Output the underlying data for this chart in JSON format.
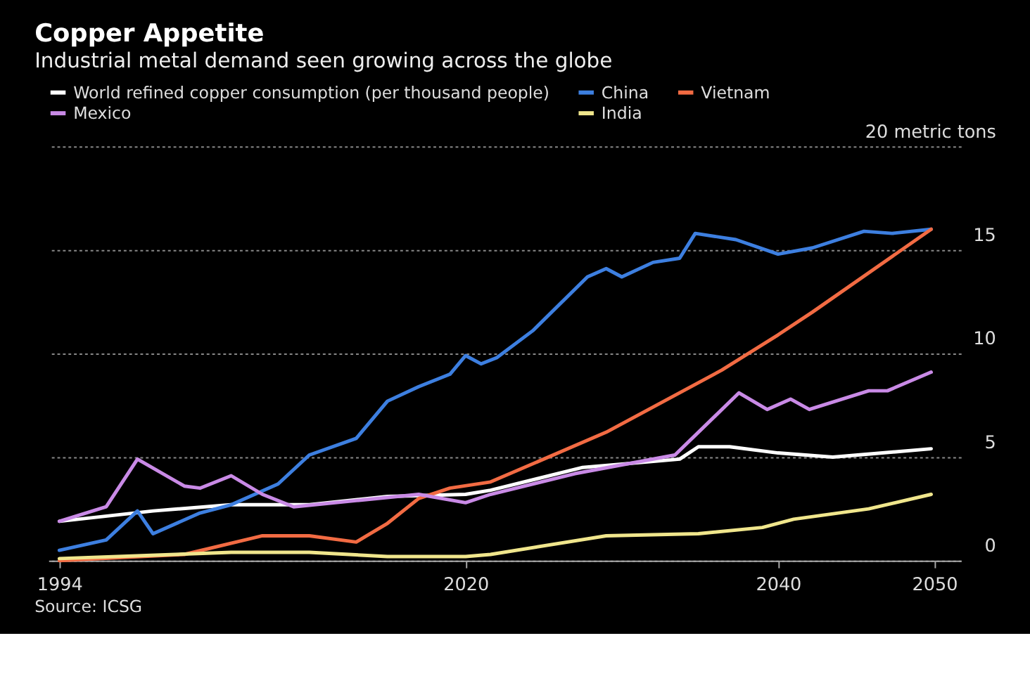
{
  "chart_data": {
    "type": "line",
    "title": "Copper Appetite",
    "subtitle": "Industrial metal demand seen growing across the globe",
    "xlim": [
      1993.3,
      2051.7
    ],
    "xticks": [
      1994,
      2020,
      2040,
      2050
    ],
    "ylim": [
      0,
      20
    ],
    "yticks": [
      0,
      5,
      10,
      15,
      {
        "value": 20,
        "label": "20 metric tons"
      }
    ],
    "grid": "y",
    "legend": "top",
    "annotations": [
      "Source: ICSG"
    ],
    "series": [
      {
        "name": "World refined copper consumption (per thousand people)",
        "color": "#ffffff",
        "x": [
          1994,
          2000,
          2005,
          2010,
          2015,
          2020,
          2021.6,
          2027.5,
          2033.7,
          2034.9,
          2036.9,
          2040,
          2043.5,
          2049.8
        ],
        "values": [
          1.9,
          2.4,
          2.7,
          2.7,
          3.1,
          3.2,
          3.4,
          4.5,
          4.9,
          5.5,
          5.5,
          5.2,
          5.0,
          5.4
        ]
      },
      {
        "name": "China",
        "color": "#3d7fe0",
        "x": [
          1994,
          1997,
          1999,
          2000,
          2003,
          2005,
          2008,
          2010,
          2013,
          2015,
          2017,
          2019,
          2020,
          2021,
          2022,
          2024.3,
          2027.8,
          2029,
          2030,
          2032,
          2033.7,
          2034.7,
          2037.3,
          2040,
          2042.2,
          2045.5,
          2047.3,
          2049.8
        ],
        "values": [
          0.5,
          1.0,
          2.4,
          1.3,
          2.3,
          2.7,
          3.7,
          5.1,
          5.9,
          7.7,
          8.4,
          9.0,
          9.9,
          9.5,
          9.8,
          11.1,
          13.7,
          14.1,
          13.7,
          14.4,
          14.6,
          15.8,
          15.5,
          14.8,
          15.1,
          15.9,
          15.8,
          16.0
        ]
      },
      {
        "name": "Vietnam",
        "color": "#f26b43",
        "x": [
          1994,
          2002,
          2007,
          2010,
          2013,
          2015,
          2017,
          2019,
          2021.6,
          2029,
          2036.4,
          2040,
          2042.2,
          2049.8
        ],
        "values": [
          0,
          0.3,
          1.2,
          1.2,
          0.9,
          1.8,
          3.0,
          3.5,
          3.8,
          6.2,
          9.2,
          10.9,
          12.0,
          16.0
        ]
      },
      {
        "name": "Mexico",
        "color": "#c98ae6",
        "x": [
          1994,
          1997,
          1999,
          2002,
          2003,
          2005,
          2007,
          2009,
          2013,
          2017,
          2020,
          2021.6,
          2027,
          2033.4,
          2037.5,
          2039.3,
          2040.8,
          2042,
          2045.8,
          2047,
          2049.8
        ],
        "values": [
          1.9,
          2.6,
          4.9,
          3.6,
          3.5,
          4.1,
          3.2,
          2.6,
          2.9,
          3.2,
          2.8,
          3.2,
          4.2,
          5.1,
          8.1,
          7.3,
          7.8,
          7.3,
          8.2,
          8.2,
          9.1
        ]
      },
      {
        "name": "India",
        "color": "#f0e68c",
        "x": [
          1994,
          2005,
          2010,
          2015,
          2020,
          2021.6,
          2029,
          2034.9,
          2039,
          2041,
          2045.8,
          2049.8
        ],
        "values": [
          0.1,
          0.4,
          0.4,
          0.2,
          0.2,
          0.3,
          1.2,
          1.3,
          1.6,
          2.0,
          2.5,
          3.2
        ]
      }
    ]
  }
}
